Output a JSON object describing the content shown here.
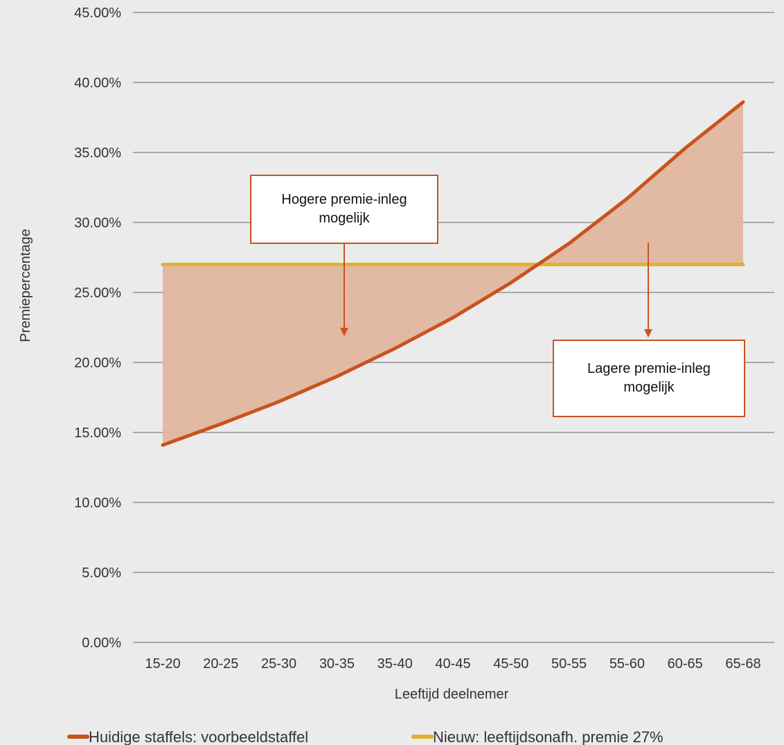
{
  "chart_data": {
    "type": "line",
    "xlabel": "Leeftijd deelnemer",
    "ylabel": "Premiepercentage",
    "ylim": [
      0,
      45
    ],
    "yticks": [
      "0.00%",
      "5.00%",
      "10.00%",
      "15.00%",
      "20.00%",
      "25.00%",
      "30.00%",
      "35.00%",
      "40.00%",
      "45.00%"
    ],
    "categories": [
      "15-20",
      "20-25",
      "25-30",
      "30-35",
      "35-40",
      "40-45",
      "45-50",
      "50-55",
      "55-60",
      "60-65",
      "65-68"
    ],
    "series": [
      {
        "name": "Huidige staffels: voorbeeldstaffel",
        "values": [
          14.1,
          15.6,
          17.2,
          19.0,
          21.0,
          23.2,
          25.7,
          28.5,
          31.7,
          35.3,
          38.6
        ],
        "color": "#c9531e"
      },
      {
        "name": "Nieuw: leeftijdsonafh. premie 27%",
        "values": [
          27,
          27,
          27,
          27,
          27,
          27,
          27,
          27,
          27,
          27,
          27
        ],
        "color": "#e0b030"
      }
    ],
    "fill_between": {
      "color": "#e2b69f"
    },
    "grid": true,
    "legend": "bottom",
    "annotations": [
      {
        "text": "Hogere premie-inleg\nmogelijk"
      },
      {
        "text": "Lagere premie-inleg\nmogelijk"
      }
    ]
  }
}
